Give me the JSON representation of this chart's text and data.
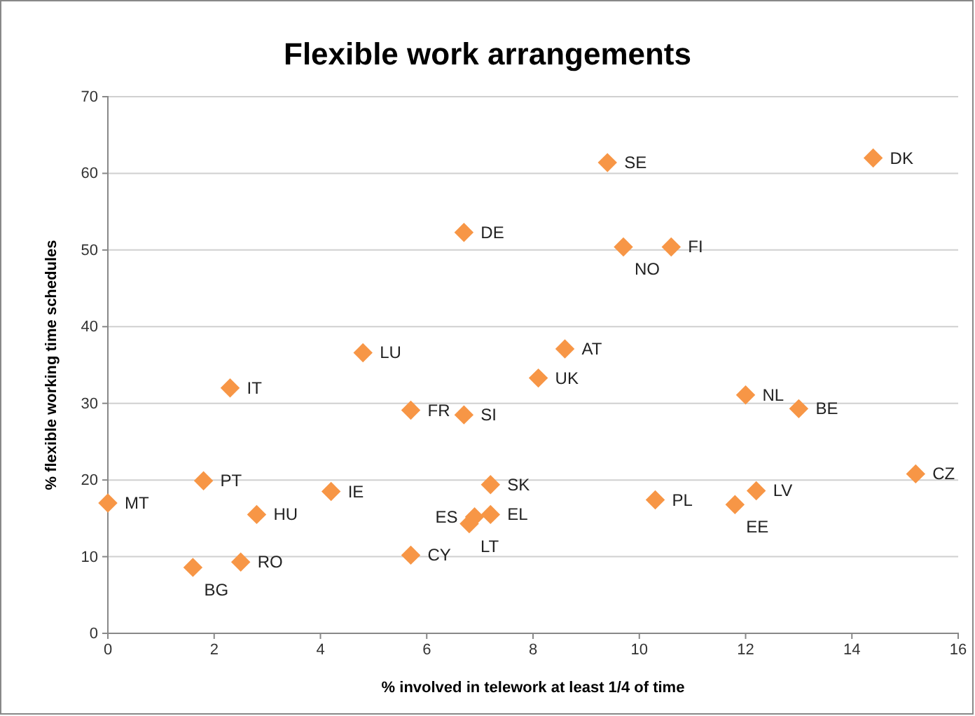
{
  "chart_data": {
    "type": "scatter",
    "title": "Flexible work arrangements",
    "xlabel": "% involved in telework at least 1/4 of time",
    "ylabel": "% flexible working time schedules",
    "x": [
      0,
      1.8,
      1.6,
      2.5,
      2.3,
      2.8,
      4.2,
      4.8,
      5.7,
      5.7,
      6.7,
      6.7,
      6.8,
      6.9,
      7.2,
      7.2,
      8.1,
      8.6,
      9.4,
      9.7,
      10.6,
      10.3,
      11.8,
      12.2,
      12.0,
      13.0,
      14.4,
      15.2
    ],
    "values": [
      17,
      19.9,
      8.6,
      9.3,
      32,
      15.5,
      18.5,
      36.6,
      29.1,
      10.2,
      52.3,
      28.5,
      14.3,
      15.2,
      15.5,
      19.4,
      33.3,
      37.1,
      61.4,
      50.4,
      50.4,
      17.4,
      16.8,
      18.6,
      31.1,
      29.3,
      62,
      20.8
    ],
    "color": "#f79646",
    "marker": "diamond",
    "grid": "y",
    "xlim": [
      0,
      16
    ],
    "xticks": [
      0,
      2,
      4,
      6,
      8,
      10,
      12,
      14,
      16
    ],
    "ylim": [
      0,
      70
    ],
    "yticks": [
      0,
      10,
      20,
      30,
      40,
      50,
      60,
      70
    ],
    "annotations": [
      {
        "text": "MT",
        "x": 0,
        "y": 17
      },
      {
        "text": "PT",
        "x": 1.8,
        "y": 19.9
      },
      {
        "text": "BG",
        "x": 1.6,
        "y": 8.6
      },
      {
        "text": "RO",
        "x": 2.5,
        "y": 9.3
      },
      {
        "text": "IT",
        "x": 2.3,
        "y": 32
      },
      {
        "text": "HU",
        "x": 2.8,
        "y": 15.5
      },
      {
        "text": "IE",
        "x": 4.2,
        "y": 18.5
      },
      {
        "text": "LU",
        "x": 4.8,
        "y": 36.6
      },
      {
        "text": "FR",
        "x": 5.7,
        "y": 29.1
      },
      {
        "text": "CY",
        "x": 5.7,
        "y": 10.2
      },
      {
        "text": "DE",
        "x": 6.7,
        "y": 52.3
      },
      {
        "text": "SI",
        "x": 6.7,
        "y": 28.5
      },
      {
        "text": "LT",
        "x": 6.8,
        "y": 14.3
      },
      {
        "text": "ES",
        "x": 6.9,
        "y": 15.2
      },
      {
        "text": "EL",
        "x": 7.2,
        "y": 15.5
      },
      {
        "text": "SK",
        "x": 7.2,
        "y": 19.4
      },
      {
        "text": "UK",
        "x": 8.1,
        "y": 33.3
      },
      {
        "text": "AT",
        "x": 8.6,
        "y": 37.1
      },
      {
        "text": "SE",
        "x": 9.4,
        "y": 61.4
      },
      {
        "text": "NO",
        "x": 9.7,
        "y": 50.4
      },
      {
        "text": "FI",
        "x": 10.6,
        "y": 50.4
      },
      {
        "text": "PL",
        "x": 10.3,
        "y": 17.4
      },
      {
        "text": "EE",
        "x": 11.8,
        "y": 16.8
      },
      {
        "text": "LV",
        "x": 12.2,
        "y": 18.6
      },
      {
        "text": "NL",
        "x": 12.0,
        "y": 31.1
      },
      {
        "text": "BE",
        "x": 13.0,
        "y": 29.3
      },
      {
        "text": "DK",
        "x": 14.4,
        "y": 62
      },
      {
        "text": "CZ",
        "x": 15.2,
        "y": 20.8
      }
    ]
  }
}
